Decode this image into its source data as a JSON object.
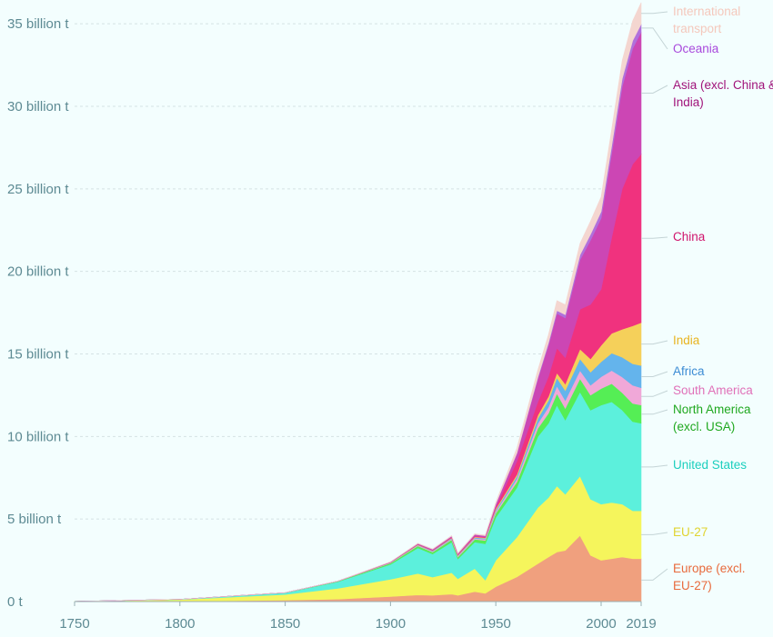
{
  "chart_data": {
    "type": "area",
    "stacked": true,
    "title": "",
    "xlabel": "",
    "ylabel": "",
    "xlim": [
      1750,
      2019
    ],
    "ylim": [
      0,
      36
    ],
    "y_ticks": [
      {
        "value": 0,
        "label": "0 t"
      },
      {
        "value": 5,
        "label": "5 billion t"
      },
      {
        "value": 10,
        "label": "10 billion t"
      },
      {
        "value": 15,
        "label": "15 billion t"
      },
      {
        "value": 20,
        "label": "20 billion t"
      },
      {
        "value": 25,
        "label": "25 billion t"
      },
      {
        "value": 30,
        "label": "30 billion t"
      },
      {
        "value": 35,
        "label": "35 billion t"
      }
    ],
    "x_ticks": [
      {
        "value": 1750,
        "label": "1750"
      },
      {
        "value": 1800,
        "label": "1800"
      },
      {
        "value": 1850,
        "label": "1850"
      },
      {
        "value": 1900,
        "label": "1900"
      },
      {
        "value": 1950,
        "label": "1950"
      },
      {
        "value": 2000,
        "label": "2000"
      },
      {
        "value": 2019,
        "label": "2019"
      }
    ],
    "grid": true,
    "legend_position": "right",
    "x": [
      1750,
      1800,
      1850,
      1875,
      1900,
      1913,
      1920,
      1929,
      1932,
      1940,
      1945,
      1950,
      1960,
      1970,
      1975,
      1979,
      1983,
      1990,
      1995,
      2000,
      2005,
      2010,
      2015,
      2019
    ],
    "series": [
      {
        "name": "Europe (excl. EU-27)",
        "color": "#f0a07e",
        "values": [
          0,
          0.02,
          0.08,
          0.15,
          0.3,
          0.4,
          0.38,
          0.45,
          0.38,
          0.6,
          0.5,
          0.9,
          1.5,
          2.3,
          2.7,
          3.0,
          3.1,
          4.0,
          2.8,
          2.5,
          2.6,
          2.7,
          2.6,
          2.6
        ]
      },
      {
        "name": "EU-27",
        "color": "#f5f55c",
        "values": [
          0.01,
          0.1,
          0.35,
          0.65,
          1.05,
          1.3,
          1.1,
          1.3,
          1.0,
          1.4,
          0.8,
          1.6,
          2.4,
          3.4,
          3.6,
          4.0,
          3.4,
          3.6,
          3.4,
          3.4,
          3.4,
          3.2,
          2.9,
          2.9
        ]
      },
      {
        "name": "United States",
        "color": "#5cf0dc",
        "values": [
          0,
          0.02,
          0.1,
          0.4,
          0.9,
          1.55,
          1.4,
          1.85,
          1.2,
          1.6,
          2.2,
          2.6,
          3.0,
          4.3,
          4.5,
          4.9,
          4.5,
          5.1,
          5.4,
          6.0,
          6.1,
          5.7,
          5.4,
          5.3
        ]
      },
      {
        "name": "North America (excl. USA)",
        "color": "#55ee55",
        "values": [
          0,
          0,
          0.01,
          0.03,
          0.08,
          0.12,
          0.12,
          0.15,
          0.12,
          0.17,
          0.2,
          0.25,
          0.35,
          0.5,
          0.6,
          0.7,
          0.7,
          0.8,
          0.9,
          1.0,
          1.1,
          1.05,
          1.1,
          1.1
        ]
      },
      {
        "name": "South America",
        "color": "#f0a8d8",
        "values": [
          0,
          0,
          0,
          0.01,
          0.02,
          0.04,
          0.04,
          0.05,
          0.05,
          0.06,
          0.07,
          0.1,
          0.18,
          0.3,
          0.38,
          0.45,
          0.48,
          0.5,
          0.6,
          0.72,
          0.8,
          0.95,
          1.1,
          1.05
        ]
      },
      {
        "name": "Africa",
        "color": "#64b4ec",
        "values": [
          0,
          0,
          0,
          0,
          0.01,
          0.02,
          0.03,
          0.04,
          0.04,
          0.05,
          0.06,
          0.1,
          0.15,
          0.3,
          0.4,
          0.5,
          0.6,
          0.7,
          0.8,
          0.9,
          1.05,
          1.2,
          1.3,
          1.35
        ]
      },
      {
        "name": "India",
        "color": "#f5d05a",
        "values": [
          0,
          0,
          0,
          0,
          0.01,
          0.02,
          0.02,
          0.03,
          0.03,
          0.04,
          0.04,
          0.08,
          0.12,
          0.2,
          0.25,
          0.3,
          0.4,
          0.6,
          0.8,
          1.0,
          1.2,
          1.7,
          2.3,
          2.6
        ]
      },
      {
        "name": "China",
        "color": "#f0327e",
        "values": [
          0,
          0,
          0,
          0,
          0.01,
          0.02,
          0.02,
          0.03,
          0.03,
          0.04,
          0.03,
          0.08,
          0.8,
          0.8,
          1.2,
          1.5,
          1.6,
          2.4,
          3.3,
          3.4,
          5.8,
          8.5,
          9.8,
          10.2
        ]
      },
      {
        "name": "Asia (excl. China & India)",
        "color": "#cc46b4",
        "values": [
          0,
          0,
          0,
          0,
          0.02,
          0.04,
          0.05,
          0.06,
          0.06,
          0.1,
          0.08,
          0.18,
          0.45,
          1.4,
          1.9,
          2.1,
          2.4,
          3.0,
          3.9,
          4.3,
          5.1,
          6.2,
          7.0,
          7.4
        ]
      },
      {
        "name": "Oceania",
        "color": "#b070dc",
        "values": [
          0,
          0,
          0,
          0,
          0,
          0.01,
          0.01,
          0.01,
          0.01,
          0.01,
          0.01,
          0.03,
          0.05,
          0.1,
          0.14,
          0.18,
          0.2,
          0.3,
          0.35,
          0.4,
          0.45,
          0.48,
          0.48,
          0.48
        ]
      },
      {
        "name": "International transport",
        "color": "#f4d6d0",
        "values": [
          0,
          0,
          0,
          0,
          0.01,
          0.02,
          0.02,
          0.03,
          0.03,
          0.04,
          0.04,
          0.1,
          0.3,
          0.45,
          0.5,
          0.6,
          0.6,
          0.7,
          0.8,
          0.9,
          1.0,
          1.1,
          1.2,
          1.3
        ]
      }
    ],
    "legend": [
      {
        "lines": [
          "International",
          "transport"
        ],
        "color": "#f4c8bc"
      },
      {
        "lines": [
          "Oceania"
        ],
        "color": "#a848dc"
      },
      {
        "lines": [
          "Asia (excl. China &",
          "India)"
        ],
        "color": "#a0137a"
      },
      {
        "lines": [
          "China"
        ],
        "color": "#d0146c"
      },
      {
        "lines": [
          "India"
        ],
        "color": "#e8b420"
      },
      {
        "lines": [
          "Africa"
        ],
        "color": "#3c8cd4"
      },
      {
        "lines": [
          "South America"
        ],
        "color": "#e070b8"
      },
      {
        "lines": [
          "North America",
          "(excl. USA)"
        ],
        "color": "#1fa81f"
      },
      {
        "lines": [
          "United States"
        ],
        "color": "#1ccfbe"
      },
      {
        "lines": [
          "EU-27"
        ],
        "color": "#e0d430"
      },
      {
        "lines": [
          "Europe (excl.",
          "EU-27)"
        ],
        "color": "#e86a3c"
      }
    ]
  }
}
